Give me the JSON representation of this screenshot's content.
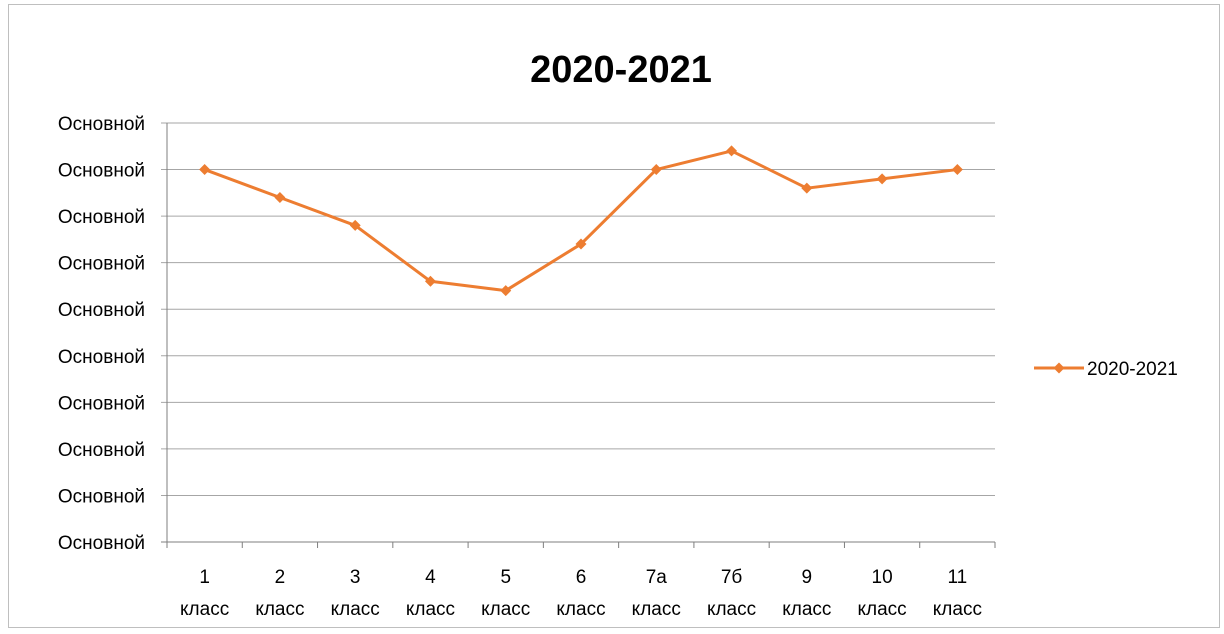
{
  "chart_data": {
    "type": "line",
    "title": "2020-2021",
    "categories": [
      [
        "1",
        "класс"
      ],
      [
        "2",
        "класс"
      ],
      [
        "3",
        "класс"
      ],
      [
        "4",
        "класс"
      ],
      [
        "5",
        "класс"
      ],
      [
        "6",
        "класс"
      ],
      [
        "7а",
        "класс"
      ],
      [
        "7б",
        "класс"
      ],
      [
        "9",
        "класс"
      ],
      [
        "10",
        "класс"
      ],
      [
        "11",
        "класс"
      ]
    ],
    "y_tick_labels": [
      "Основной",
      "Основной",
      "Основной",
      "Основной",
      "Основной",
      "Основной",
      "Основной",
      "Основной",
      "Основной",
      "Основной"
    ],
    "ylim": [
      0,
      9
    ],
    "series": [
      {
        "name": "2020-2021",
        "color": "#ED7D31",
        "marker": "diamond",
        "values": [
          8,
          7.4,
          6.8,
          5.6,
          5.4,
          6.4,
          8,
          8.4,
          7.6,
          7.8,
          8
        ]
      }
    ],
    "grid": true,
    "legend_position": "right"
  }
}
